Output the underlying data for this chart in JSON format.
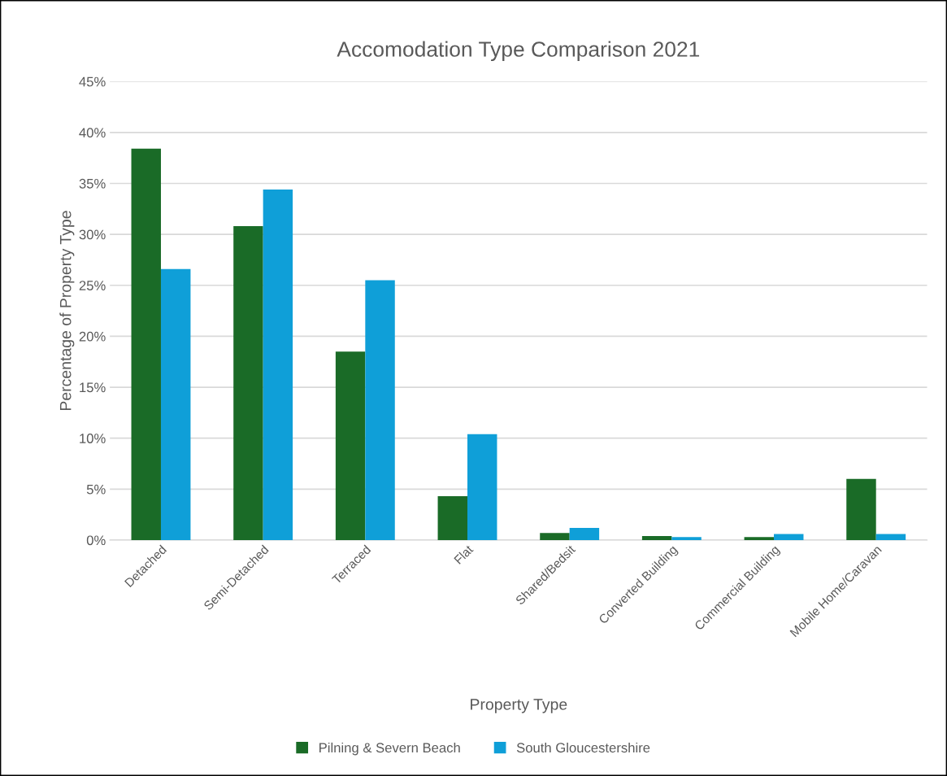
{
  "chart_data": {
    "type": "bar",
    "title": "Accomodation Type Comparison 2021",
    "xlabel": "Property Type",
    "ylabel": "Percentage of Property Type",
    "categories": [
      "Detached",
      "Semi-Detached",
      "Terraced",
      "Flat",
      "Shared/Bedsit",
      "Converted Building",
      "Commercial Building",
      "Mobile Home/Caravan"
    ],
    "series": [
      {
        "name": "Pilning & Severn Beach",
        "color": "#1a6b27",
        "values": [
          38.4,
          30.8,
          18.5,
          4.3,
          0.7,
          0.4,
          0.3,
          6.0
        ]
      },
      {
        "name": "South Gloucestershire",
        "color": "#0f9fd8",
        "values": [
          26.6,
          34.4,
          25.5,
          10.4,
          1.2,
          0.3,
          0.6,
          0.6
        ]
      }
    ],
    "ylim": [
      0,
      45
    ],
    "yticks": [
      {
        "value": 0,
        "label": "0%"
      },
      {
        "value": 5,
        "label": "5%"
      },
      {
        "value": 10,
        "label": "10%"
      },
      {
        "value": 15,
        "label": "15%"
      },
      {
        "value": 20,
        "label": "20%"
      },
      {
        "value": 25,
        "label": "25%"
      },
      {
        "value": 30,
        "label": "30%"
      },
      {
        "value": 35,
        "label": "35%"
      },
      {
        "value": 40,
        "label": "40%"
      },
      {
        "value": 45,
        "label": "45%"
      }
    ],
    "grid": "y",
    "legend": "bottom"
  }
}
